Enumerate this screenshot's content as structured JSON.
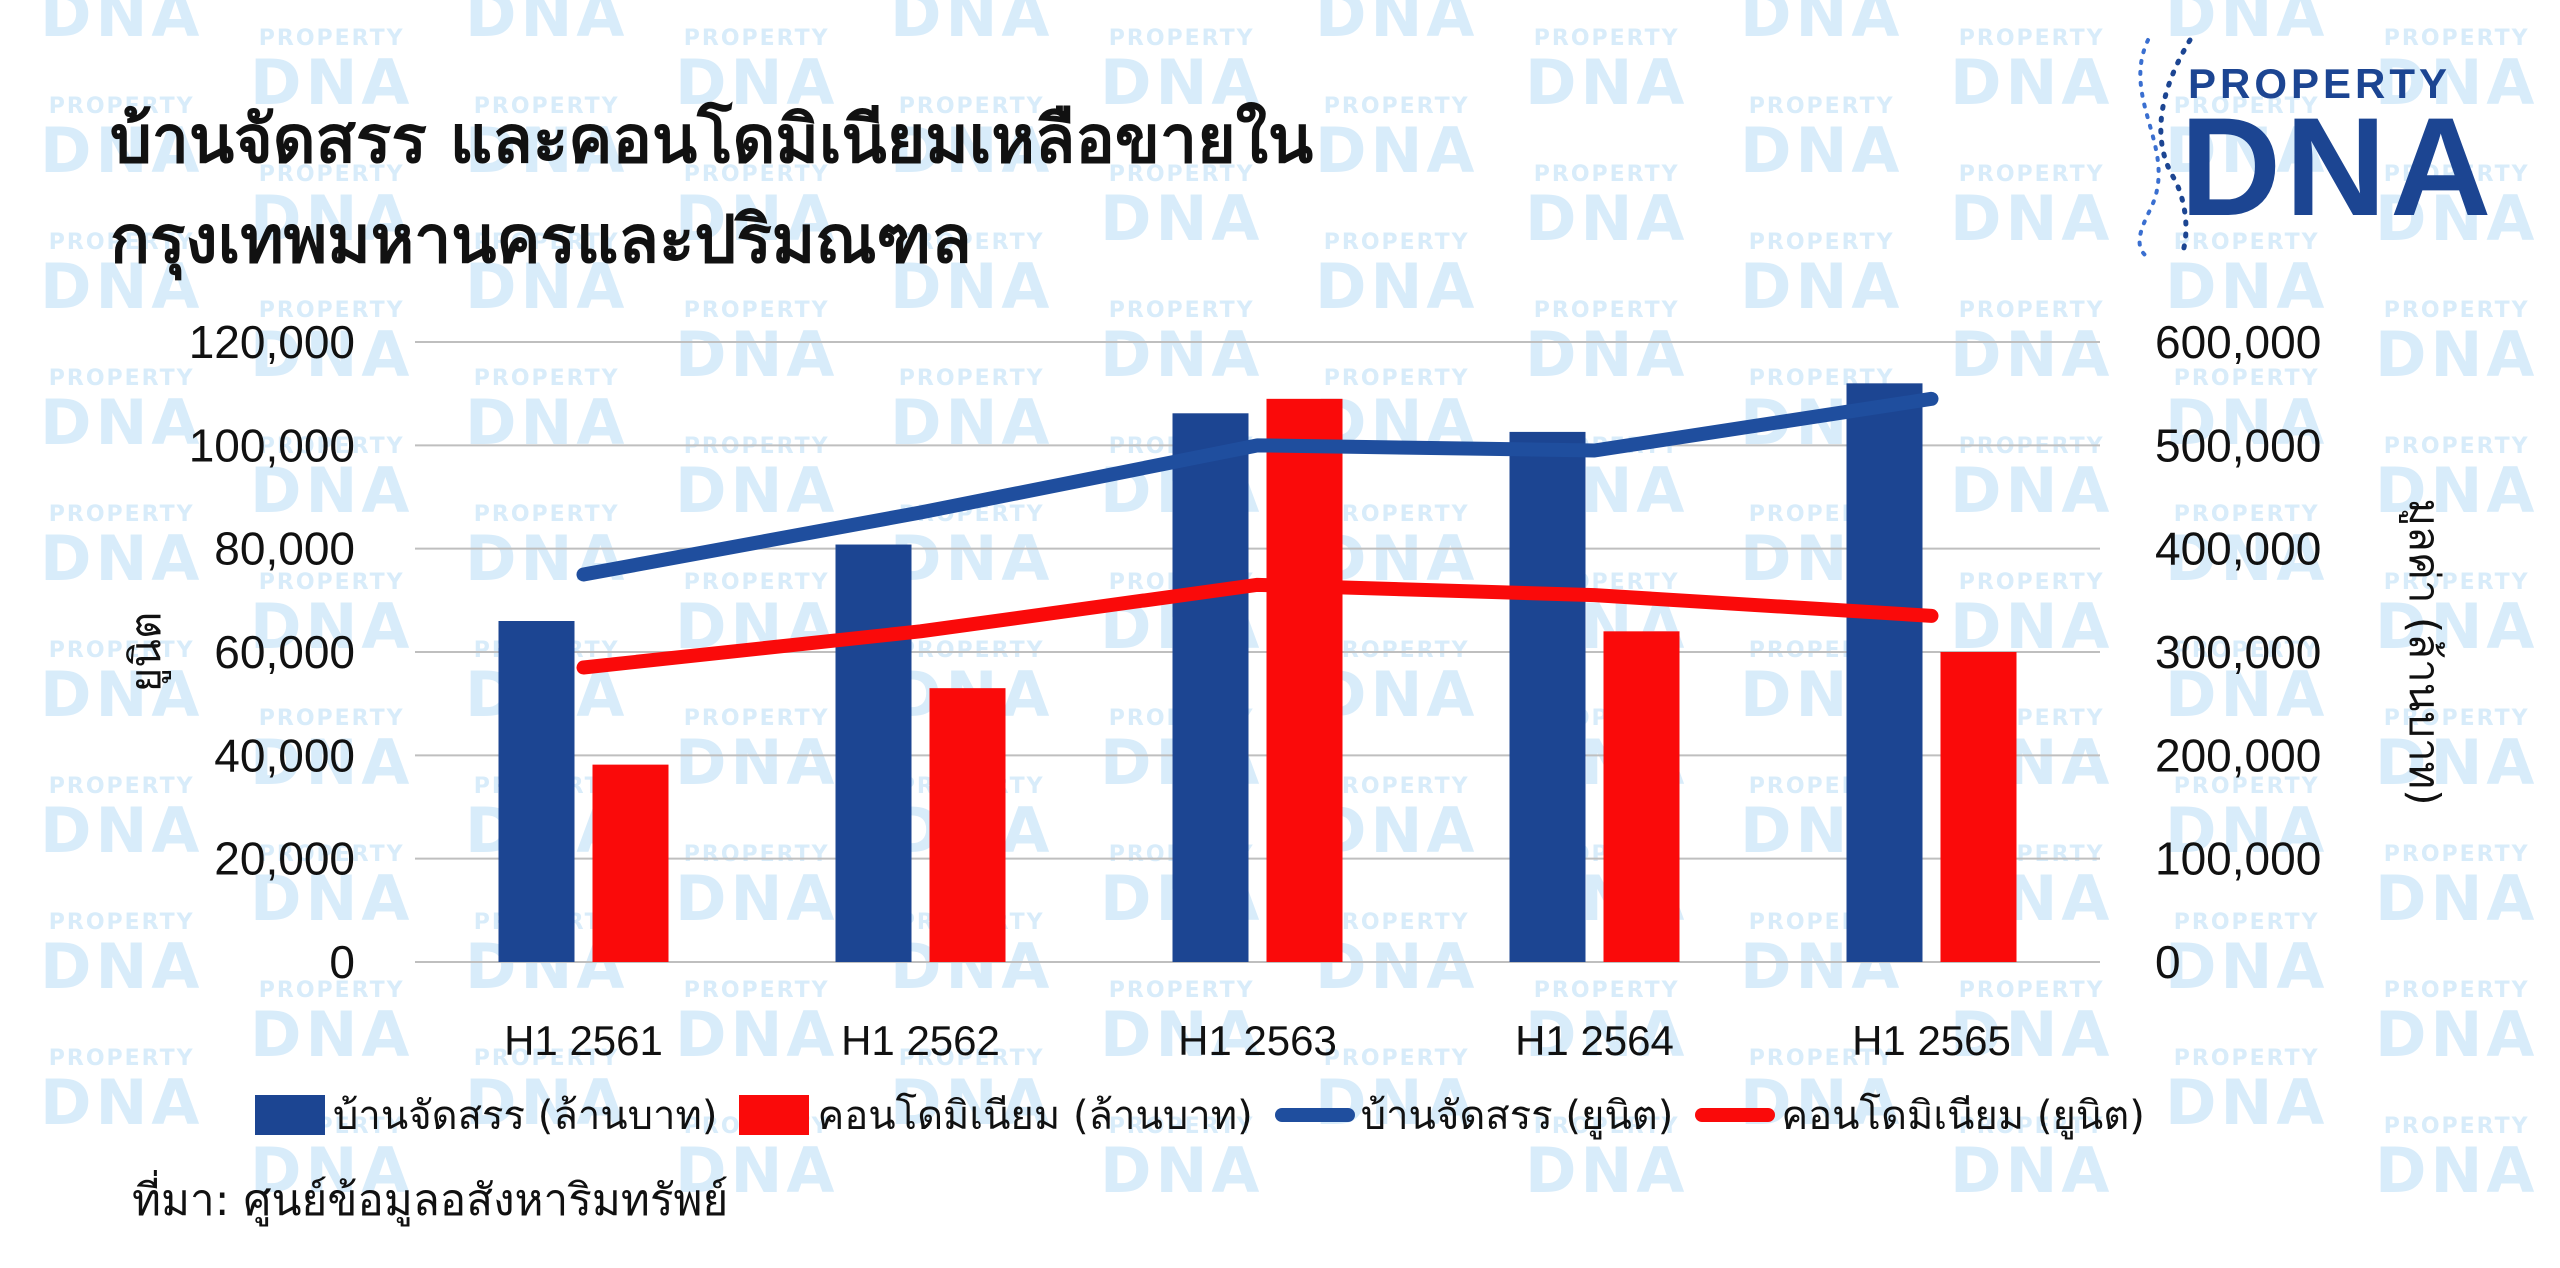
{
  "title_line1": "บ้านจัดสรร และคอนโดมิเนียมเหลือขายใน",
  "title_line2": "กรุงเทพมหานครและปริมณฑล",
  "logo": {
    "line1": "PROPERTY",
    "line2": "DNA"
  },
  "watermark": {
    "line1": "PROPERTY",
    "line2": "DNA"
  },
  "source": "ที่มา: ศูนย์ข้อมูลอสังหาริมทรัพย์",
  "colors": {
    "house": "#1c4592",
    "condo": "#fa0a0a",
    "house_line": "#1f4e9e",
    "condo_line": "#fa0a0a",
    "grid": "#bfbfbf",
    "watermark": "#d8ecfa"
  },
  "chart_data": {
    "type": "bar",
    "categories": [
      "H1 2561",
      "H1 2562",
      "H1 2563",
      "H1 2564",
      "H1 2565"
    ],
    "series": [
      {
        "name": "บ้านจัดสรร (ล้านบาท)",
        "type": "bar",
        "axis": "right",
        "values": [
          330000,
          404000,
          531000,
          513000,
          560000
        ]
      },
      {
        "name": "คอนโดมิเนียม (ล้านบาท)",
        "type": "bar",
        "axis": "right",
        "values": [
          191000,
          265000,
          545000,
          320000,
          300000
        ]
      },
      {
        "name": "บ้านจัดสรร (ยูนิต)",
        "type": "line",
        "axis": "left",
        "values": [
          75000,
          87000,
          100000,
          99000,
          109000
        ]
      },
      {
        "name": "คอนโดมิเนียม (ยูนิต)",
        "type": "line",
        "axis": "left",
        "values": [
          57000,
          64000,
          73000,
          71000,
          67000
        ]
      }
    ],
    "y_left": {
      "label": "ยูนิต",
      "ticks": [
        "120,000",
        "100,000",
        "80,000",
        "60,000",
        "40,000",
        "20,000",
        "0"
      ],
      "range": [
        0,
        120000
      ]
    },
    "y_right": {
      "label": "มูลค่า (ล้านบาท)",
      "ticks": [
        "600,000",
        "500,000",
        "400,000",
        "300,000",
        "200,000",
        "100,000",
        "0"
      ],
      "range": [
        0,
        600000
      ]
    },
    "grid": true,
    "legend_position": "bottom"
  }
}
